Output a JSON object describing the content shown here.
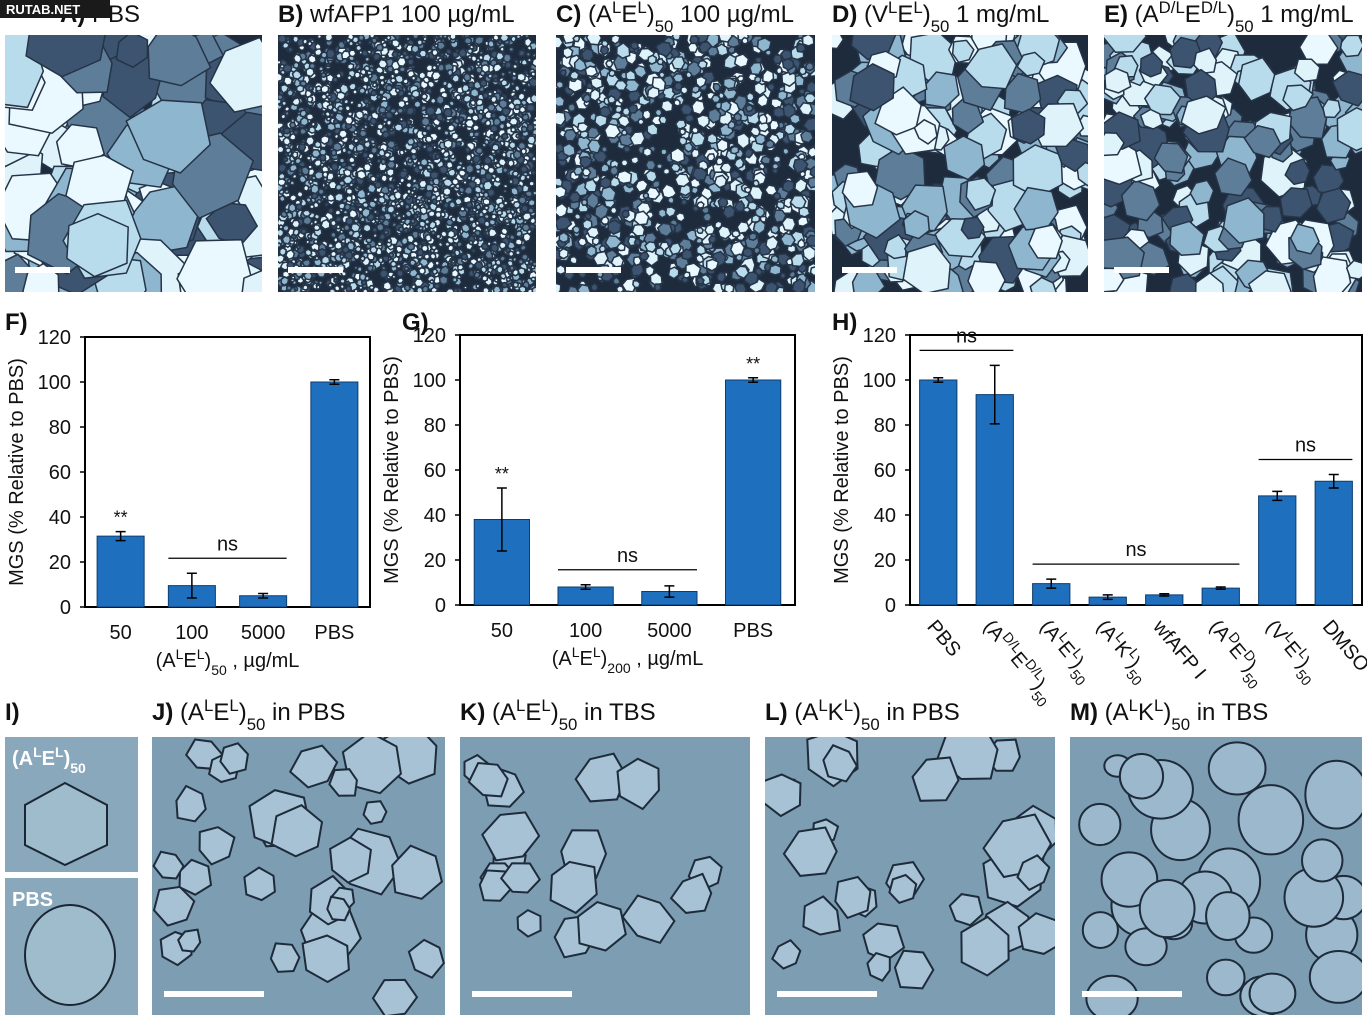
{
  "watermark": "RUTAB.NET",
  "top_panels": [
    {
      "letter": "A)",
      "caption": "PBS"
    },
    {
      "letter": "B)",
      "caption": "wfAFP1 100 µg/mL"
    },
    {
      "letter": "C)",
      "caption": [
        {
          "text": "(A"
        },
        {
          "text": "L",
          "style": "sup"
        },
        {
          "text": "E"
        },
        {
          "text": "L",
          "style": "sup"
        },
        {
          "text": ")"
        },
        {
          "text": "50",
          "style": "sub"
        },
        {
          "text": " 100 µg/mL"
        }
      ]
    },
    {
      "letter": "D)",
      "caption": [
        {
          "text": "(V"
        },
        {
          "text": "L",
          "style": "sup"
        },
        {
          "text": "E"
        },
        {
          "text": "L",
          "style": "sup"
        },
        {
          "text": ")"
        },
        {
          "text": "50",
          "style": "sub"
        },
        {
          "text": " 1 mg/mL"
        }
      ]
    },
    {
      "letter": "E)",
      "caption": [
        {
          "text": "(A"
        },
        {
          "text": "D/L",
          "style": "sup"
        },
        {
          "text": "E"
        },
        {
          "text": "D/L",
          "style": "sup"
        },
        {
          "text": ")"
        },
        {
          "text": "50",
          "style": "sub"
        },
        {
          "text": " 1 mg/mL"
        }
      ]
    }
  ],
  "bottom_panels": [
    {
      "letter": "I)",
      "insets": [
        [
          {
            "text": "(A"
          },
          {
            "text": "L",
            "style": "sup"
          },
          {
            "text": "E"
          },
          {
            "text": "L",
            "style": "sup"
          },
          {
            "text": ")"
          },
          {
            "text": "50",
            "style": "sub"
          }
        ],
        "PBS"
      ]
    },
    {
      "letter": "J)",
      "caption": [
        {
          "text": "(A"
        },
        {
          "text": "L",
          "style": "sup"
        },
        {
          "text": "E"
        },
        {
          "text": "L",
          "style": "sup"
        },
        {
          "text": ")"
        },
        {
          "text": "50",
          "style": "sub"
        },
        {
          "text": " in PBS"
        }
      ]
    },
    {
      "letter": "K)",
      "caption": [
        {
          "text": "(A"
        },
        {
          "text": "L",
          "style": "sup"
        },
        {
          "text": "E"
        },
        {
          "text": "L",
          "style": "sup"
        },
        {
          "text": ")"
        },
        {
          "text": "50",
          "style": "sub"
        },
        {
          "text": " in TBS"
        }
      ]
    },
    {
      "letter": "L)",
      "caption": [
        {
          "text": "(A"
        },
        {
          "text": "L",
          "style": "sup"
        },
        {
          "text": "K"
        },
        {
          "text": "L",
          "style": "sup"
        },
        {
          "text": ")"
        },
        {
          "text": "50",
          "style": "sub"
        },
        {
          "text": " in PBS"
        }
      ]
    },
    {
      "letter": "M)",
      "caption": [
        {
          "text": "(A"
        },
        {
          "text": "L",
          "style": "sup"
        },
        {
          "text": "K"
        },
        {
          "text": "L",
          "style": "sup"
        },
        {
          "text": ")"
        },
        {
          "text": "50",
          "style": "sub"
        },
        {
          "text": " in TBS"
        }
      ]
    }
  ],
  "chart_data": [
    {
      "type": "bar",
      "panel": "F)",
      "color": "#1f6fbf",
      "ylabel": "MGS (% Relative to PBS)",
      "xlabel": [
        {
          "text": "(A"
        },
        {
          "text": "L",
          "style": "sup"
        },
        {
          "text": "E"
        },
        {
          "text": "L",
          "style": "sup"
        },
        {
          "text": ")"
        },
        {
          "text": "50",
          "style": "sub"
        },
        {
          "text": " , µg/mL"
        }
      ],
      "categories": [
        "50",
        "100",
        "5000",
        "PBS"
      ],
      "values": [
        31.5,
        9.5,
        5,
        100
      ],
      "errors": [
        2,
        5.5,
        1,
        1
      ],
      "bar_labels": [
        "**",
        null,
        null,
        null
      ],
      "groups": [
        {
          "label": "ns",
          "span": [
            1,
            2
          ]
        }
      ],
      "ylim": [
        0,
        120
      ],
      "yticks": [
        0,
        20,
        40,
        60,
        80,
        100,
        120
      ]
    },
    {
      "type": "bar",
      "panel": "G)",
      "color": "#1f6fbf",
      "ylabel": "MGS (% Relative to PBS)",
      "xlabel": [
        {
          "text": "(A"
        },
        {
          "text": "L",
          "style": "sup"
        },
        {
          "text": "E"
        },
        {
          "text": "L",
          "style": "sup"
        },
        {
          "text": ")"
        },
        {
          "text": "200",
          "style": "sub"
        },
        {
          "text": " , µg/mL"
        }
      ],
      "categories": [
        "50",
        "100",
        "5000",
        "PBS"
      ],
      "values": [
        38,
        8,
        6,
        100
      ],
      "errors": [
        14,
        1,
        2.5,
        1
      ],
      "bar_labels": [
        "**",
        null,
        null,
        "**"
      ],
      "groups": [
        {
          "label": "ns",
          "span": [
            1,
            2
          ]
        }
      ],
      "ylim": [
        0,
        120
      ],
      "yticks": [
        0,
        20,
        40,
        60,
        80,
        100,
        120
      ]
    },
    {
      "type": "bar",
      "panel": "H)",
      "color": "#1f6fbf",
      "rotate_categories": true,
      "ylabel": "MGS (% Relative to PBS)",
      "categories": [
        "PBS",
        [
          {
            "text": "(A"
          },
          {
            "text": "D/L",
            "style": "sup"
          },
          {
            "text": "E"
          },
          {
            "text": "D/L",
            "style": "sup"
          },
          {
            "text": ")"
          },
          {
            "text": "50",
            "style": "sub"
          }
        ],
        [
          {
            "text": "(A"
          },
          {
            "text": "L",
            "style": "sup"
          },
          {
            "text": "E"
          },
          {
            "text": "L",
            "style": "sup"
          },
          {
            "text": ")"
          },
          {
            "text": "50",
            "style": "sub"
          }
        ],
        [
          {
            "text": "(A"
          },
          {
            "text": "L",
            "style": "sup"
          },
          {
            "text": "K"
          },
          {
            "text": "L",
            "style": "sup"
          },
          {
            "text": ")"
          },
          {
            "text": "50",
            "style": "sub"
          }
        ],
        "wfAFP I",
        [
          {
            "text": "(A"
          },
          {
            "text": "D",
            "style": "sup"
          },
          {
            "text": "E"
          },
          {
            "text": "D",
            "style": "sup"
          },
          {
            "text": ")"
          },
          {
            "text": "50",
            "style": "sub"
          }
        ],
        [
          {
            "text": "(V"
          },
          {
            "text": "L",
            "style": "sup"
          },
          {
            "text": "E"
          },
          {
            "text": "L",
            "style": "sup"
          },
          {
            "text": ")"
          },
          {
            "text": "50",
            "style": "sub"
          }
        ],
        "DMSO"
      ],
      "values": [
        100,
        93.5,
        9.5,
        3.5,
        4.5,
        7.5,
        48.5,
        55
      ],
      "errors": [
        1,
        13,
        2,
        1,
        0.5,
        0.5,
        2,
        3
      ],
      "groups": [
        {
          "label": "ns",
          "span": [
            0,
            1
          ]
        },
        {
          "label": "ns",
          "span": [
            2,
            5
          ]
        },
        {
          "label": "ns",
          "span": [
            6,
            7
          ]
        }
      ],
      "ylim": [
        0,
        120
      ],
      "yticks": [
        0,
        20,
        40,
        60,
        80,
        100,
        120
      ]
    }
  ]
}
